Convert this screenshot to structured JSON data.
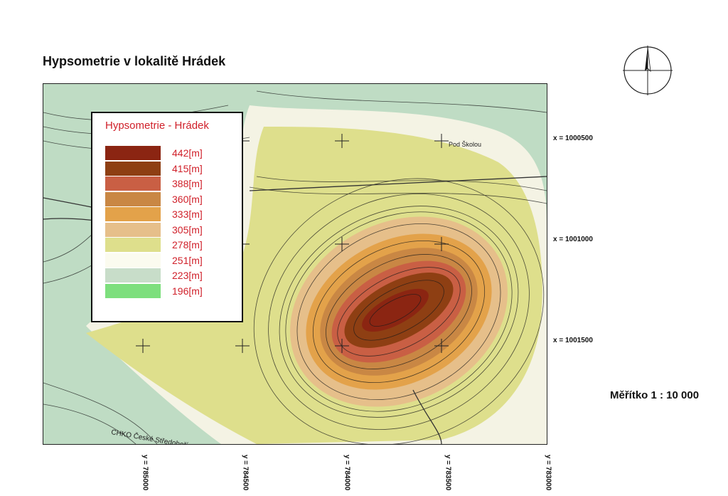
{
  "title": "Hypsometrie v lokalitě Hrádek",
  "legend": {
    "title": "Hypsometrie - Hrádek",
    "items": [
      {
        "label": "442[m]",
        "color": "#8b2512"
      },
      {
        "label": "415[m]",
        "color": "#8e3f13"
      },
      {
        "label": "388[m]",
        "color": "#c95f44"
      },
      {
        "label": "360[m]",
        "color": "#c98744"
      },
      {
        "label": "333[m]",
        "color": "#e3a24a"
      },
      {
        "label": "305[m]",
        "color": "#e6bf8a"
      },
      {
        "label": "278[m]",
        "color": "#dedf8c"
      },
      {
        "label": "251[m]",
        "color": "#fbfbef"
      },
      {
        "label": "223[m]",
        "color": "#c8ddc9"
      },
      {
        "label": "196[m]",
        "color": "#7ddf7d"
      }
    ]
  },
  "grid_labels": {
    "x": [
      "x = 1000500",
      "x = 1001000",
      "x = 1001500"
    ],
    "y": [
      "y = 785000",
      "y = 784500",
      "y = 784000",
      "y = 783500",
      "y = 783000"
    ]
  },
  "map_text": {
    "place": "Pod Školou",
    "protected_area": "CHKO České Středohoří"
  },
  "scale_text": "Měřítko  1 : 10 000",
  "north_arrow": "north-arrow-icon"
}
